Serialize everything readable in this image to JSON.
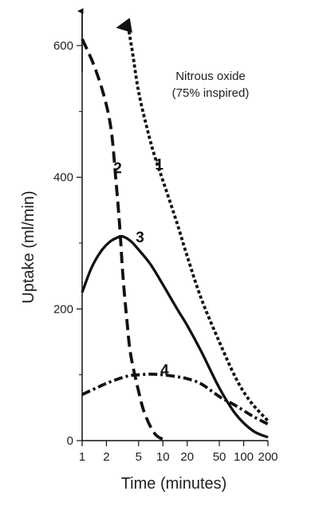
{
  "chart_data": {
    "type": "line",
    "xlabel": "Time (minutes)",
    "ylabel": "Uptake (ml/min)",
    "x_scale": "log",
    "xlim": [
      1,
      200
    ],
    "ylim": [
      0,
      650
    ],
    "x_ticks": [
      1,
      2,
      5,
      10,
      20,
      50,
      100,
      200
    ],
    "x_tick_labels": [
      "1",
      "2",
      "5",
      "10",
      "20",
      "50",
      "100",
      "200"
    ],
    "y_ticks": [
      0,
      200,
      400,
      600
    ],
    "y_tick_labels": [
      "0",
      "200",
      "400",
      "600"
    ],
    "grid": false,
    "annotation": {
      "line1": "Nitrous oxide",
      "line2": "(75% inspired)"
    },
    "series": [
      {
        "name": "1",
        "style": "dotted",
        "arrow_at_start": true,
        "x": [
          3.7,
          4.2,
          5,
          6.5,
          8,
          10,
          15,
          20,
          30,
          50,
          80,
          120,
          200
        ],
        "y": [
          630,
          590,
          530,
          470,
          430,
          395,
          330,
          280,
          215,
          150,
          95,
          60,
          30
        ],
        "label_x": 9,
        "label_y": 420
      },
      {
        "name": "2",
        "style": "dashed",
        "x": [
          1,
          1.4,
          1.9,
          2.3,
          2.6,
          2.9,
          3.2,
          3.6,
          4,
          5,
          6,
          8,
          11
        ],
        "y": [
          610,
          570,
          520,
          470,
          400,
          330,
          250,
          180,
          130,
          75,
          40,
          10,
          0
        ],
        "label_x": 2.75,
        "label_y": 415
      },
      {
        "name": "3",
        "style": "solid",
        "x": [
          1,
          1.3,
          1.7,
          2.2,
          2.8,
          3.2,
          4,
          5,
          7,
          10,
          15,
          20,
          30,
          50,
          80,
          130,
          200
        ],
        "y": [
          225,
          262,
          287,
          302,
          309,
          310,
          303,
          290,
          268,
          237,
          200,
          175,
          135,
          80,
          40,
          15,
          5
        ],
        "label_x": 5.2,
        "label_y": 310
      },
      {
        "name": "4",
        "style": "dashdot",
        "x": [
          1,
          1.5,
          2,
          3,
          4,
          5,
          7,
          10,
          15,
          20,
          30,
          50,
          80,
          130,
          200
        ],
        "y": [
          70,
          80,
          87,
          95,
          99,
          100,
          101,
          100,
          97,
          94,
          86,
          67,
          53,
          37,
          25
        ],
        "label_x": 10.5,
        "label_y": 108
      }
    ]
  }
}
